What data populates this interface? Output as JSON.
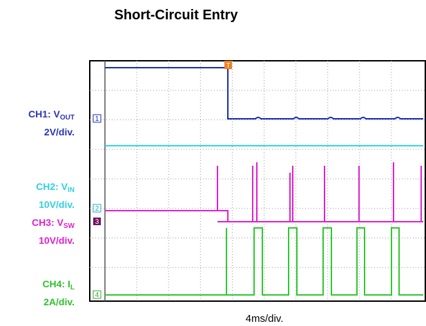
{
  "title": "Short-Circuit Entry",
  "channels": [
    {
      "name": "CH1: V",
      "sub": "OUT",
      "scale": "2V/div."
    },
    {
      "name": "CH2: V",
      "sub": "IN",
      "scale": "10V/div."
    },
    {
      "name": "CH3: V",
      "sub": "SW",
      "scale": "10V/div."
    },
    {
      "name": "CH4: I",
      "sub": "L",
      "scale": "2A/div."
    }
  ],
  "markers": [
    "T",
    "1",
    "2",
    "3",
    "4"
  ],
  "x_scale": "4ms/div."
}
